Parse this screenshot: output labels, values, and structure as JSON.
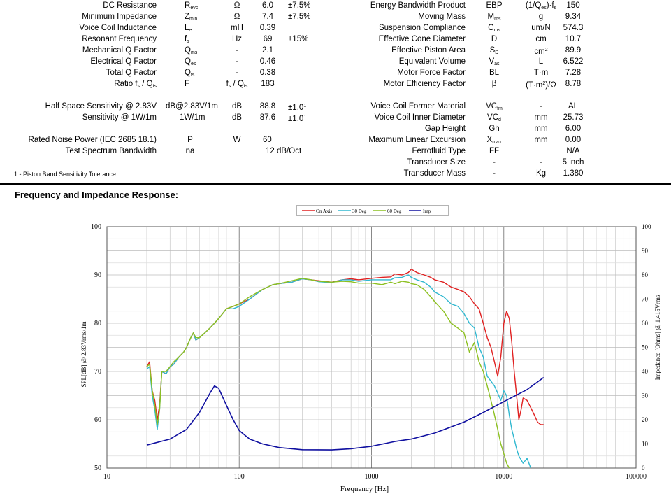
{
  "specs_left": [
    {
      "name": "DC Resistance",
      "sym": "R",
      "sub": "evc",
      "unit": "Ω",
      "value": "6.0",
      "tol": "±7.5%"
    },
    {
      "name": "Minimum Impedance",
      "sym": "Z",
      "sub": "min",
      "unit": "Ω",
      "value": "7.4",
      "tol": "±7.5%"
    },
    {
      "name": "Voice Coil Inductance",
      "sym": "L",
      "sub": "e",
      "unit": "mH",
      "value": "0.39",
      "tol": ""
    },
    {
      "name": "Resonant Frequency",
      "sym": "f",
      "sub": "s",
      "unit": "Hz",
      "value": "69",
      "tol": "±15%"
    },
    {
      "name": "Mechanical Q Factor",
      "sym": "Q",
      "sub": "ms",
      "unit": "-",
      "value": "2.1",
      "tol": ""
    },
    {
      "name": "Electrical Q Factor",
      "sym": "Q",
      "sub": "es",
      "unit": "-",
      "value": "0.46",
      "tol": ""
    },
    {
      "name": "Total Q Factor",
      "sym": "Q",
      "sub": "ts",
      "unit": "-",
      "value": "0.38",
      "tol": ""
    },
    {
      "name": "Ratio f",
      "name_sub": "s",
      "name_tail": " / Q",
      "name_sub2": "ts",
      "sym": "F",
      "sub": "",
      "unit": "f",
      "unit_sub": "s",
      "unit_tail": " / Q",
      "unit_sub2": "ts",
      "value": "183",
      "tol": ""
    }
  ],
  "specs_left2": [
    {
      "name": "Half Space Sensitivity @ 2.83V",
      "sym": "dB@2.83V/1m",
      "unit": "dB",
      "value": "88.8",
      "tol": "±1.0",
      "tol_sup": "1"
    },
    {
      "name": "Sensitivity @ 1W/1m",
      "sym": "1W/1m",
      "unit": "dB",
      "value": "87.6",
      "tol": "±1.0",
      "tol_sup": "1"
    }
  ],
  "specs_left3": [
    {
      "name": "Rated Noise Power (IEC 2685 18.1)",
      "sym": "P",
      "unit": "W",
      "value": "60",
      "tol": ""
    },
    {
      "name": "Test Spectrum Bandwidth",
      "sym": "na",
      "unit": "",
      "value": "12 dB/Oct",
      "tol": ""
    }
  ],
  "footnote": "1 - Piston Band Sensitivity Tolerance",
  "specs_right": [
    {
      "name": "Energy Bandwidth Product",
      "sym": "EBP",
      "sub": "",
      "unit": "(1/Q",
      "unit_sub": "es",
      "unit_tail": ")·f",
      "unit_sub2": "s",
      "value": "150"
    },
    {
      "name": "Moving Mass",
      "sym": "M",
      "sub": "ms",
      "unit": "g",
      "value": "9.34"
    },
    {
      "name": "Suspension Compliance",
      "sym": "C",
      "sub": "ms",
      "unit": "um/N",
      "value": "574.3"
    },
    {
      "name": "Effective Cone Diameter",
      "sym": "D",
      "sub": "",
      "unit": "cm",
      "value": "10.7"
    },
    {
      "name": "Effective Piston Area",
      "sym": "S",
      "sub": "D",
      "unit": "cm",
      "unit_sup": "2",
      "value": "89.9"
    },
    {
      "name": "Equivalent Volume",
      "sym": "V",
      "sub": "as",
      "unit": "L",
      "value": "6.522"
    },
    {
      "name": "Motor Force Factor",
      "sym": "BL",
      "sub": "",
      "unit": "T·m",
      "value": "7.28"
    },
    {
      "name": "Motor Efficiency Factor",
      "sym": "β",
      "sub": "",
      "unit": "(T·m",
      "unit_sup": "2",
      "unit_tail": ")/Ω",
      "value": "8.78"
    }
  ],
  "specs_right2": [
    {
      "name": "Voice Coil Former Material",
      "sym": "VC",
      "sub": "fm",
      "unit": "-",
      "value": "AL"
    },
    {
      "name": "Voice Coil Inner Diameter",
      "sym": "VC",
      "sub": "d",
      "unit": "mm",
      "value": "25.73"
    },
    {
      "name": "Gap Height",
      "sym": "Gh",
      "sub": "",
      "unit": "mm",
      "value": "6.00"
    },
    {
      "name": "Maximum Linear Excursion",
      "sym": "X",
      "sub": "max",
      "unit": "mm",
      "value": "0.00"
    },
    {
      "name": "Ferrofluid Type",
      "sym": "FF",
      "sub": "",
      "unit": "",
      "value": "N/A"
    },
    {
      "name": "Transducer Size",
      "sym": "-",
      "sub": "",
      "unit": "-",
      "value": "5 inch"
    },
    {
      "name": "Transducer Mass",
      "sym": "-",
      "sub": "",
      "unit": "Kg",
      "value": "1.380"
    }
  ],
  "section_title": "Frequency and Impedance Response:",
  "chart_data": {
    "type": "line",
    "xlabel": "Frequency [Hz]",
    "ylabel": "SPL[dB] @ 2.83Vrms/1m",
    "y2label": "Impedance [Ohms] @ 1.415Vrms",
    "xscale": "log",
    "xlim": [
      10,
      100000
    ],
    "ylim": [
      50,
      100
    ],
    "y2lim": [
      0,
      100
    ],
    "x_ticks": [
      "10",
      "100",
      "1000",
      "10000",
      "100000"
    ],
    "y_ticks": [
      "50",
      "60",
      "70",
      "80",
      "90",
      "100"
    ],
    "y2_ticks": [
      "0",
      "10",
      "20",
      "30",
      "40",
      "50",
      "60",
      "70",
      "80",
      "90",
      "100"
    ],
    "grid": true,
    "legend_position": "top-center",
    "series": [
      {
        "name": "On Axis",
        "color": "#e02020",
        "axis": "left",
        "points": [
          [
            20,
            71
          ],
          [
            21,
            72
          ],
          [
            22,
            66
          ],
          [
            23,
            64
          ],
          [
            24,
            60
          ],
          [
            25,
            63
          ],
          [
            26,
            70
          ],
          [
            28,
            69.5
          ],
          [
            30,
            71
          ],
          [
            32,
            71.5
          ],
          [
            35,
            73
          ],
          [
            38,
            74
          ],
          [
            40,
            75
          ],
          [
            43,
            77
          ],
          [
            45,
            78
          ],
          [
            47,
            76.5
          ],
          [
            50,
            77
          ],
          [
            55,
            78
          ],
          [
            60,
            79
          ],
          [
            65,
            80
          ],
          [
            70,
            81
          ],
          [
            75,
            82
          ],
          [
            80,
            83
          ],
          [
            90,
            83.5
          ],
          [
            100,
            84
          ],
          [
            120,
            85
          ],
          [
            150,
            87
          ],
          [
            180,
            88
          ],
          [
            200,
            88.2
          ],
          [
            250,
            88.5
          ],
          [
            300,
            89.2
          ],
          [
            350,
            89
          ],
          [
            400,
            88.8
          ],
          [
            500,
            88.5
          ],
          [
            600,
            89
          ],
          [
            700,
            89.2
          ],
          [
            800,
            89
          ],
          [
            1000,
            89.3
          ],
          [
            1200,
            89.5
          ],
          [
            1400,
            89.6
          ],
          [
            1500,
            90.2
          ],
          [
            1700,
            90
          ],
          [
            1900,
            90.5
          ],
          [
            2000,
            91.2
          ],
          [
            2200,
            90.5
          ],
          [
            2500,
            90
          ],
          [
            2800,
            89.5
          ],
          [
            3000,
            89
          ],
          [
            3500,
            88.5
          ],
          [
            4000,
            87.5
          ],
          [
            4500,
            87
          ],
          [
            5000,
            86.5
          ],
          [
            5500,
            85.5
          ],
          [
            6000,
            84
          ],
          [
            6500,
            83
          ],
          [
            7000,
            80
          ],
          [
            7500,
            77
          ],
          [
            8000,
            75
          ],
          [
            8500,
            72
          ],
          [
            9000,
            69
          ],
          [
            9500,
            73
          ],
          [
            10000,
            80
          ],
          [
            10500,
            82.5
          ],
          [
            11000,
            81
          ],
          [
            11500,
            76
          ],
          [
            12000,
            70
          ],
          [
            12500,
            65
          ],
          [
            13000,
            60
          ],
          [
            13500,
            62
          ],
          [
            14000,
            64.5
          ],
          [
            15000,
            64
          ],
          [
            16000,
            62.5
          ],
          [
            17000,
            61
          ],
          [
            18000,
            59.5
          ],
          [
            19000,
            59
          ],
          [
            20000,
            59
          ]
        ]
      },
      {
        "name": "30 Deg",
        "color": "#30b8d0",
        "axis": "left",
        "points": [
          [
            20,
            70.5
          ],
          [
            21,
            71
          ],
          [
            22,
            65
          ],
          [
            23,
            62
          ],
          [
            24,
            58
          ],
          [
            25,
            62
          ],
          [
            26,
            70
          ],
          [
            28,
            69.5
          ],
          [
            30,
            71
          ],
          [
            32,
            71.5
          ],
          [
            35,
            73
          ],
          [
            38,
            74
          ],
          [
            40,
            75
          ],
          [
            43,
            77
          ],
          [
            45,
            78
          ],
          [
            47,
            76.5
          ],
          [
            50,
            77
          ],
          [
            55,
            78
          ],
          [
            60,
            79
          ],
          [
            65,
            80
          ],
          [
            70,
            81
          ],
          [
            75,
            82
          ],
          [
            80,
            83
          ],
          [
            90,
            83
          ],
          [
            100,
            83.5
          ],
          [
            120,
            85
          ],
          [
            150,
            87
          ],
          [
            180,
            88
          ],
          [
            200,
            88.2
          ],
          [
            250,
            88.5
          ],
          [
            300,
            89.2
          ],
          [
            350,
            89
          ],
          [
            400,
            88.6
          ],
          [
            500,
            88.4
          ],
          [
            600,
            89
          ],
          [
            700,
            89
          ],
          [
            800,
            88.7
          ],
          [
            1000,
            89
          ],
          [
            1200,
            89
          ],
          [
            1400,
            89
          ],
          [
            1500,
            89.4
          ],
          [
            1700,
            89.5
          ],
          [
            1900,
            90
          ],
          [
            2000,
            89.5
          ],
          [
            2200,
            89
          ],
          [
            2500,
            88.5
          ],
          [
            2800,
            87.5
          ],
          [
            3000,
            86.5
          ],
          [
            3500,
            85.5
          ],
          [
            4000,
            84
          ],
          [
            4500,
            83.5
          ],
          [
            5000,
            82
          ],
          [
            5500,
            80
          ],
          [
            6000,
            79
          ],
          [
            6500,
            75
          ],
          [
            7000,
            73
          ],
          [
            7500,
            69
          ],
          [
            8000,
            68
          ],
          [
            8500,
            67
          ],
          [
            9000,
            65.5
          ],
          [
            9500,
            64
          ],
          [
            10000,
            66
          ],
          [
            10500,
            65
          ],
          [
            11000,
            61
          ],
          [
            11500,
            58
          ],
          [
            12000,
            56
          ],
          [
            12500,
            54
          ],
          [
            13000,
            52.5
          ],
          [
            14000,
            51
          ],
          [
            15000,
            52
          ],
          [
            16000,
            50
          ]
        ]
      },
      {
        "name": "60 Deg",
        "color": "#8cc020",
        "axis": "left",
        "points": [
          [
            20,
            71
          ],
          [
            21,
            71.5
          ],
          [
            22,
            66
          ],
          [
            23,
            63
          ],
          [
            24,
            59
          ],
          [
            25,
            62
          ],
          [
            26,
            70
          ],
          [
            28,
            70
          ],
          [
            30,
            71
          ],
          [
            32,
            72
          ],
          [
            35,
            73
          ],
          [
            38,
            74
          ],
          [
            40,
            75
          ],
          [
            43,
            77
          ],
          [
            45,
            78
          ],
          [
            47,
            77
          ],
          [
            50,
            77
          ],
          [
            55,
            78
          ],
          [
            60,
            79
          ],
          [
            65,
            80
          ],
          [
            70,
            81
          ],
          [
            75,
            82
          ],
          [
            80,
            83
          ],
          [
            90,
            83.5
          ],
          [
            100,
            84
          ],
          [
            120,
            85.5
          ],
          [
            150,
            87
          ],
          [
            180,
            88
          ],
          [
            200,
            88.2
          ],
          [
            250,
            88.8
          ],
          [
            300,
            89.3
          ],
          [
            350,
            89
          ],
          [
            400,
            88.7
          ],
          [
            500,
            88.5
          ],
          [
            600,
            88.7
          ],
          [
            700,
            88.6
          ],
          [
            800,
            88.3
          ],
          [
            1000,
            88.3
          ],
          [
            1200,
            88
          ],
          [
            1400,
            88.5
          ],
          [
            1500,
            88.2
          ],
          [
            1700,
            88.7
          ],
          [
            1900,
            88.5
          ],
          [
            2000,
            88.2
          ],
          [
            2200,
            88
          ],
          [
            2500,
            87
          ],
          [
            2800,
            85.5
          ],
          [
            3000,
            84.5
          ],
          [
            3500,
            82.5
          ],
          [
            4000,
            80
          ],
          [
            4500,
            79
          ],
          [
            5000,
            78
          ],
          [
            5500,
            74
          ],
          [
            6000,
            76
          ],
          [
            6500,
            72
          ],
          [
            7000,
            70
          ],
          [
            7500,
            67
          ],
          [
            8000,
            64
          ],
          [
            8500,
            61
          ],
          [
            9000,
            58
          ],
          [
            9500,
            55
          ],
          [
            10000,
            53
          ],
          [
            10500,
            51
          ],
          [
            11000,
            50
          ]
        ]
      },
      {
        "name": "Imp",
        "color": "#1010a0",
        "axis": "right",
        "points": [
          [
            20,
            9.5
          ],
          [
            30,
            12
          ],
          [
            40,
            16
          ],
          [
            50,
            23
          ],
          [
            60,
            31
          ],
          [
            65,
            34
          ],
          [
            70,
            33
          ],
          [
            80,
            26
          ],
          [
            90,
            20
          ],
          [
            100,
            15.5
          ],
          [
            120,
            12
          ],
          [
            150,
            10
          ],
          [
            200,
            8.5
          ],
          [
            300,
            7.6
          ],
          [
            500,
            7.5
          ],
          [
            700,
            8
          ],
          [
            1000,
            9
          ],
          [
            1500,
            11
          ],
          [
            2000,
            12
          ],
          [
            3000,
            14.5
          ],
          [
            5000,
            19
          ],
          [
            7000,
            23
          ],
          [
            10000,
            27.5
          ],
          [
            15000,
            32.5
          ],
          [
            20000,
            37.5
          ]
        ]
      }
    ]
  }
}
